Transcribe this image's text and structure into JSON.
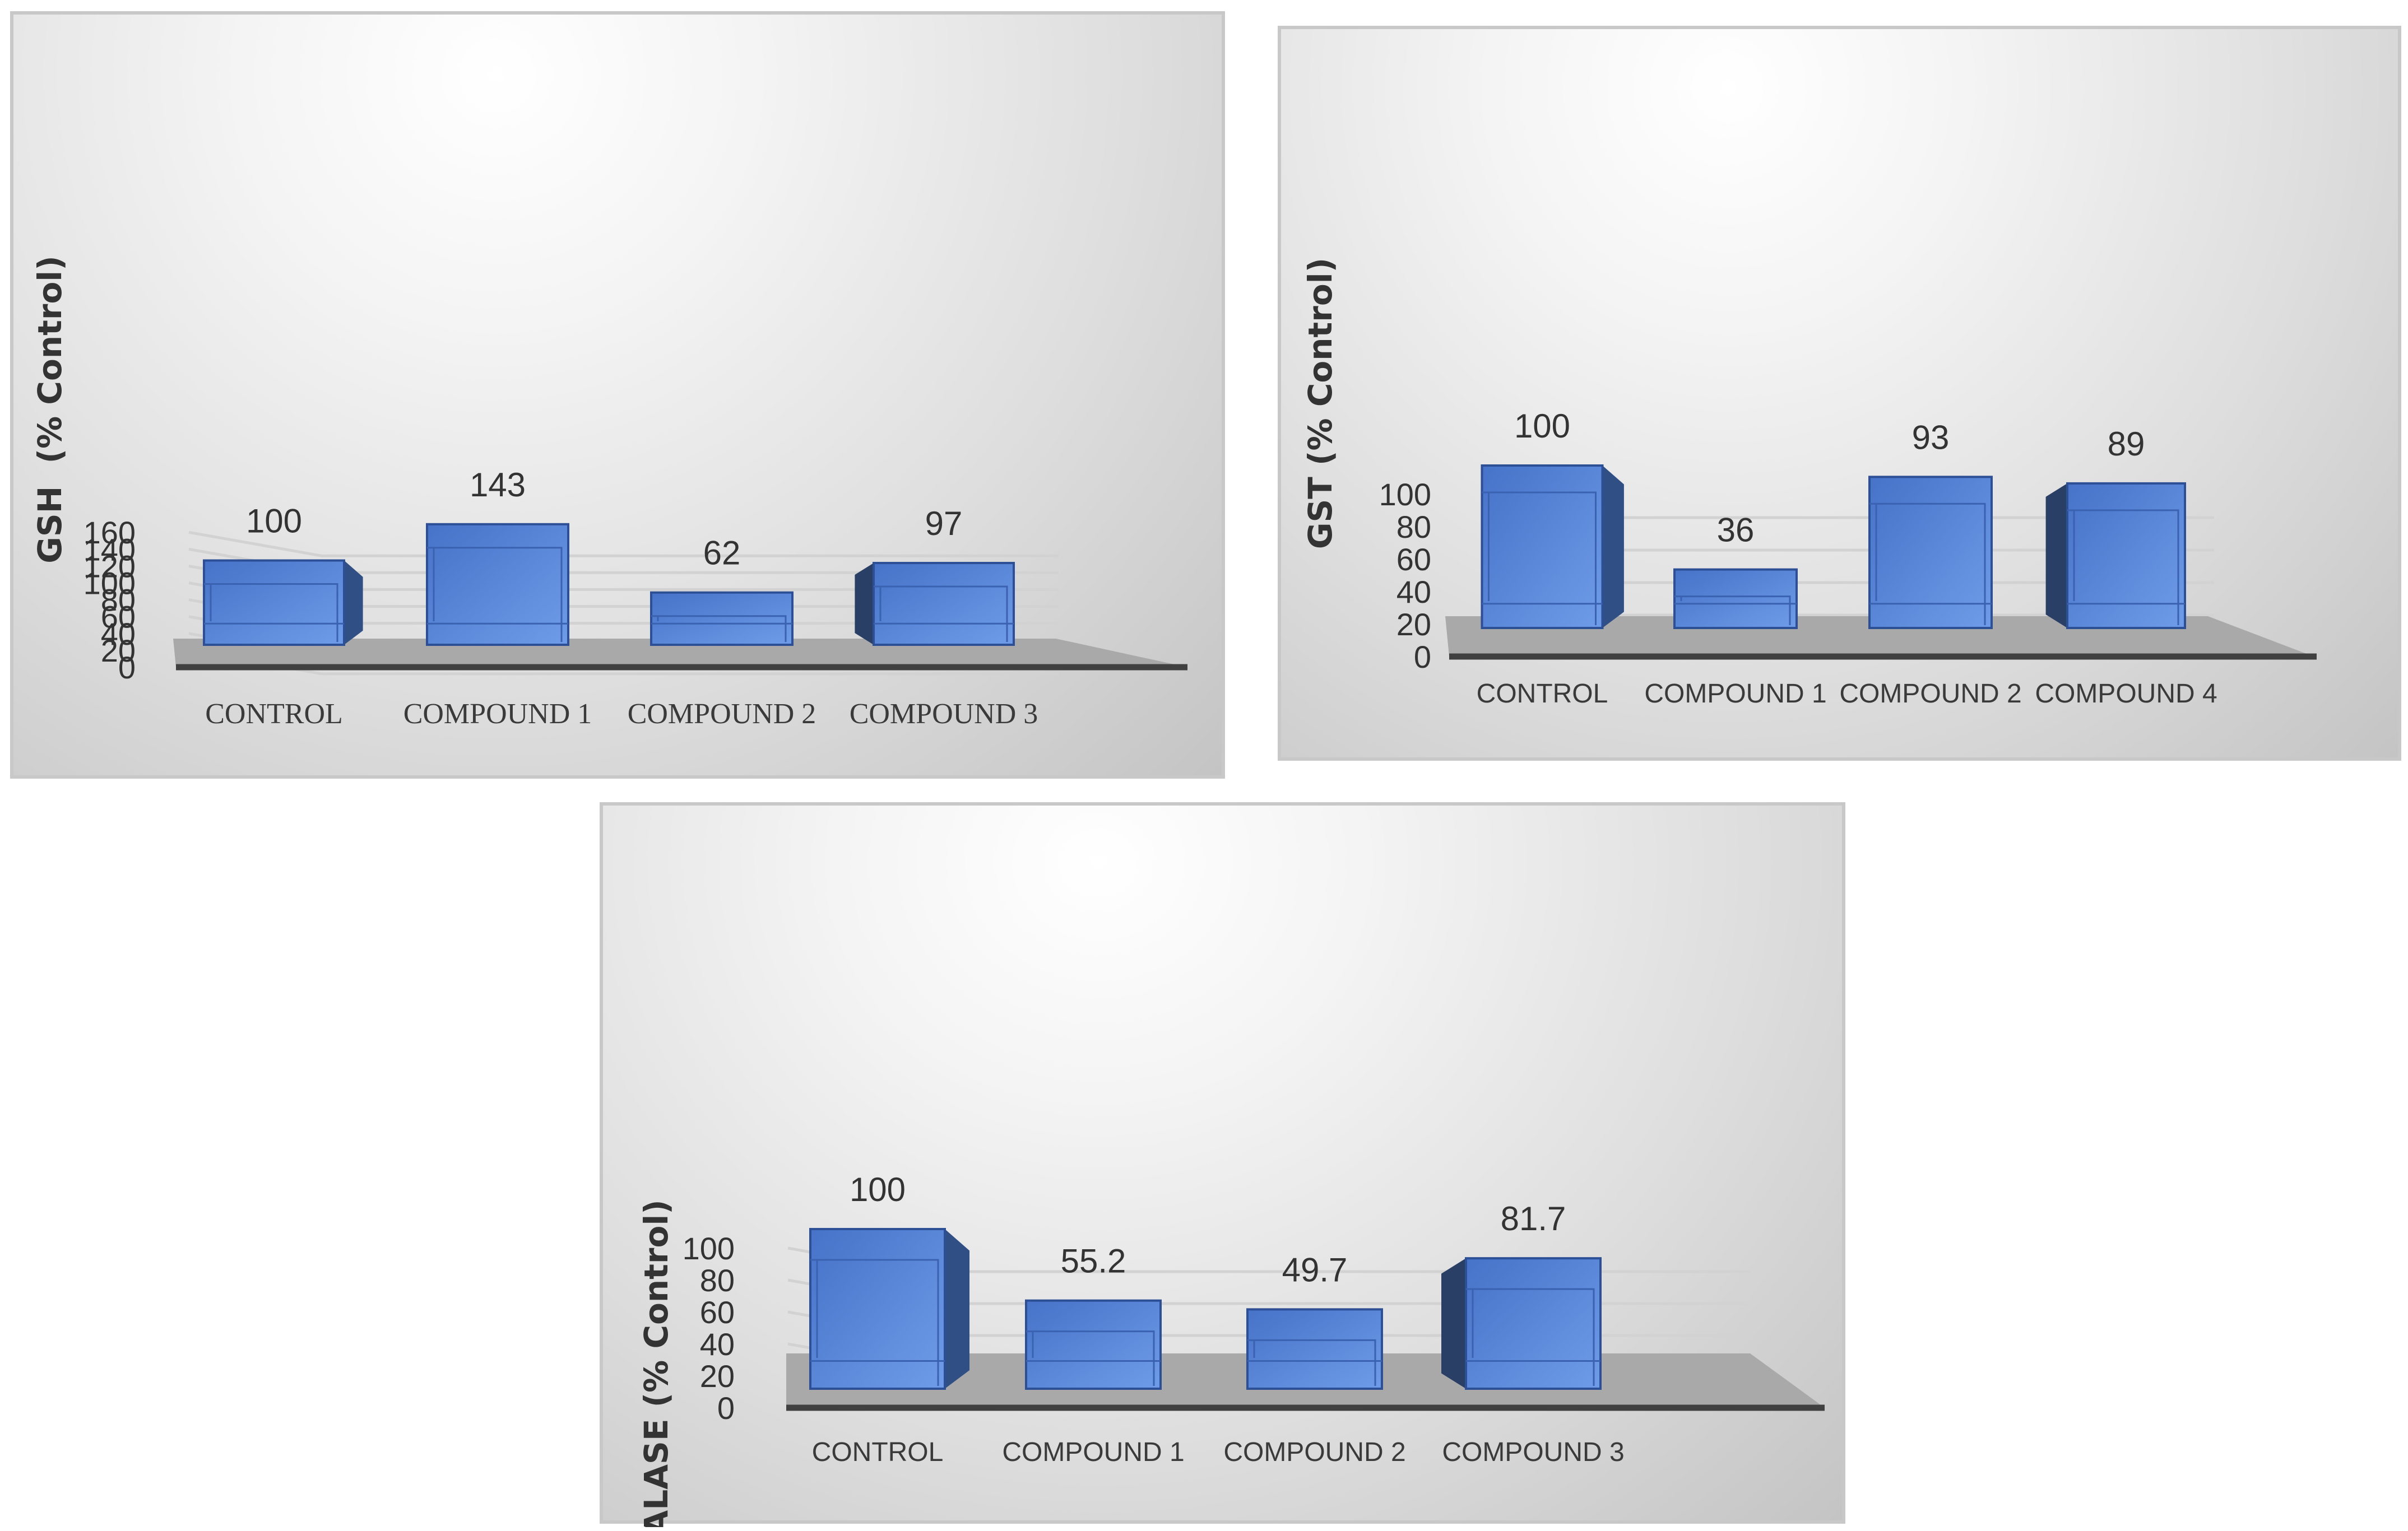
{
  "chart_data": [
    {
      "type": "bar",
      "categories": [
        "CONTROL",
        "COMPOUND 1",
        "COMPOUND 2",
        "COMPOUND 3"
      ],
      "values": [
        100,
        143,
        62,
        97
      ],
      "data_labels": [
        "100",
        "143",
        "62",
        "97"
      ],
      "ylabel": "GSH  (% Control)",
      "ylim": [
        0,
        160
      ],
      "yticks": [
        "0",
        "20",
        "40",
        "60",
        "80",
        "100",
        "120",
        "140",
        "160"
      ],
      "grid": true,
      "style": "3d",
      "bar_color": "#4f7fd3"
    },
    {
      "type": "bar",
      "categories": [
        "CONTROL",
        "COMPOUND 1",
        "COMPOUND 2",
        "COMPOUND 4"
      ],
      "values": [
        100,
        36,
        93,
        89
      ],
      "data_labels": [
        "100",
        "36",
        "93",
        "89"
      ],
      "ylabel": "GST (% Control)",
      "ylim": [
        0,
        100
      ],
      "yticks": [
        "0",
        "20",
        "40",
        "60",
        "80",
        "100"
      ],
      "grid": true,
      "style": "3d",
      "bar_color": "#4f7fd3"
    },
    {
      "type": "bar",
      "categories": [
        "CONTROL",
        "COMPOUND 1",
        "COMPOUND 2",
        "COMPOUND 3"
      ],
      "values": [
        100,
        55.2,
        49.7,
        81.7
      ],
      "data_labels": [
        "100",
        "55.2",
        "49.7",
        "81.7"
      ],
      "ylabel": "CATALASE (% Control)",
      "ylim": [
        0,
        100
      ],
      "yticks": [
        "0",
        "20",
        "40",
        "60",
        "80",
        "100"
      ],
      "grid": true,
      "style": "3d",
      "bar_color": "#4f7fd3"
    }
  ]
}
